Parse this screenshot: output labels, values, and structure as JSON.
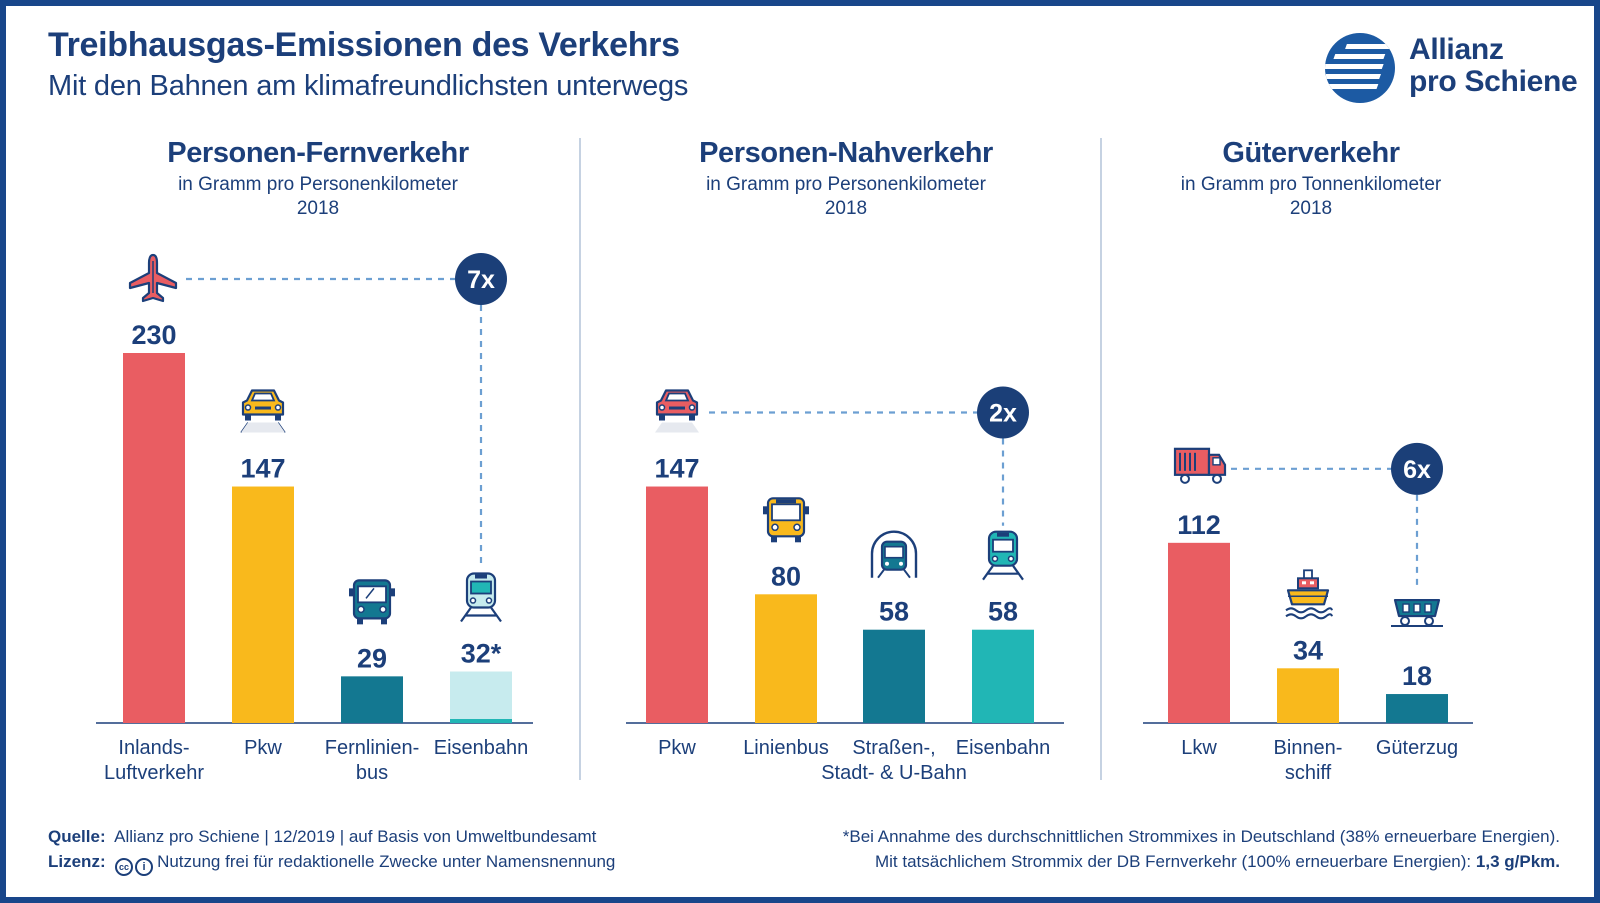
{
  "header": {
    "title": "Treibhausgas-Emissionen des Verkehrs",
    "subtitle": "Mit den Bahnen am klimafreundlichsten unterwegs"
  },
  "logo": {
    "line1": "Allianz",
    "line2": "pro Schiene"
  },
  "colors": {
    "navy": "#1c3f7a",
    "red": "#e95d62",
    "yellow": "#f9b91c",
    "teal_dark": "#137891",
    "teal": "#21b6b5",
    "light_teal": "#c7ebee",
    "dashed": "#6c9fd2"
  },
  "chart_data": [
    {
      "type": "bar",
      "title": "Personen-Fernverkehr",
      "subtitle": "in Gramm pro Personenkilometer",
      "year": "2018",
      "categories": [
        "Inlands-\nLuftverkehr",
        "Pkw",
        "Fernlinien-\nbus",
        "Eisenbahn"
      ],
      "values": [
        230,
        147,
        29,
        32
      ],
      "value_labels": [
        "230",
        "147",
        "29",
        "32*"
      ],
      "icons": [
        "airplane-icon",
        "car-icon",
        "bus-icon",
        "train-icon"
      ],
      "colors": [
        "#e95d62",
        "#f9b91c",
        "#137891",
        "#c7ebee"
      ],
      "comparison": {
        "label": "7x",
        "from": 0,
        "to": 3
      }
    },
    {
      "type": "bar",
      "title": "Personen-Nahverkehr",
      "subtitle": "in Gramm pro Personenkilometer",
      "year": "2018",
      "categories": [
        "Pkw",
        "Linienbus",
        "Straßen-,\nStadt- & U-Bahn",
        "Eisenbahn"
      ],
      "values": [
        147,
        80,
        58,
        58
      ],
      "value_labels": [
        "147",
        "80",
        "58",
        "58"
      ],
      "icons": [
        "car-icon",
        "city-bus-icon",
        "tram-icon",
        "train-icon"
      ],
      "colors": [
        "#e95d62",
        "#f9b91c",
        "#137891",
        "#21b6b5"
      ],
      "comparison": {
        "label": "2x",
        "from": 0,
        "to": 3
      }
    },
    {
      "type": "bar",
      "title": "Güterverkehr",
      "subtitle": "in Gramm pro Tonnenkilometer",
      "year": "2018",
      "categories": [
        "Lkw",
        "Binnen-\nschiff",
        "Güterzug"
      ],
      "values": [
        112,
        34,
        18
      ],
      "value_labels": [
        "112",
        "34",
        "18"
      ],
      "icons": [
        "truck-icon",
        "ship-icon",
        "freight-wagon-icon"
      ],
      "colors": [
        "#e95d62",
        "#f9b91c",
        "#137891"
      ],
      "comparison": {
        "label": "6x",
        "from": 0,
        "to": 2
      }
    }
  ],
  "footer": {
    "source_label": "Quelle:",
    "source_text": "Allianz pro Schiene | 12/2019 | auf Basis von Umweltbundesamt",
    "license_label": "Lizenz:",
    "license_text": "Nutzung frei für redaktionelle Zwecke unter Namensnennung",
    "note_line1": "*Bei Annahme des durchschnittlichen Strommixes in Deutschland (38% erneuerbare Energien).",
    "note_line2": "Mit tatsächlichem Strommix der DB Fernverkehr (100% erneuerbare Energien):",
    "note_value": "1,3 g/Pkm."
  }
}
